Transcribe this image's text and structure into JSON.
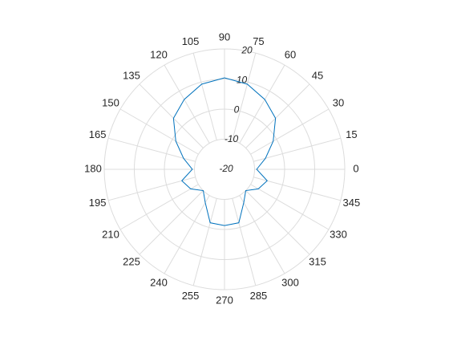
{
  "chart_data": {
    "type": "polar",
    "theta": [
      0,
      15,
      30,
      45,
      60,
      75,
      90,
      105,
      120,
      135,
      150,
      165,
      180,
      195,
      210,
      225,
      240,
      255,
      270,
      285,
      300,
      315,
      330,
      345
    ],
    "series": [
      {
        "color": "#0072bd",
        "values": [
          -9.3,
          -5.9,
          -1.3,
          4,
          6.8,
          9.3,
          10.4,
          9.3,
          6.8,
          4,
          -1.3,
          -5.9,
          -9.3,
          -5.3,
          -7,
          -10,
          -7.2,
          -1.6,
          -1.3,
          -1.6,
          -7.2,
          -10,
          -7,
          -5.3
        ]
      }
    ],
    "rlim": [
      -20,
      20
    ],
    "rticks": [
      -20,
      -10,
      0,
      10,
      20
    ],
    "thetaticks": [
      0,
      15,
      30,
      45,
      60,
      75,
      90,
      105,
      120,
      135,
      150,
      165,
      180,
      195,
      210,
      225,
      240,
      255,
      270,
      285,
      300,
      315,
      330,
      345
    ],
    "rtick_angle": 80,
    "grid": true
  }
}
